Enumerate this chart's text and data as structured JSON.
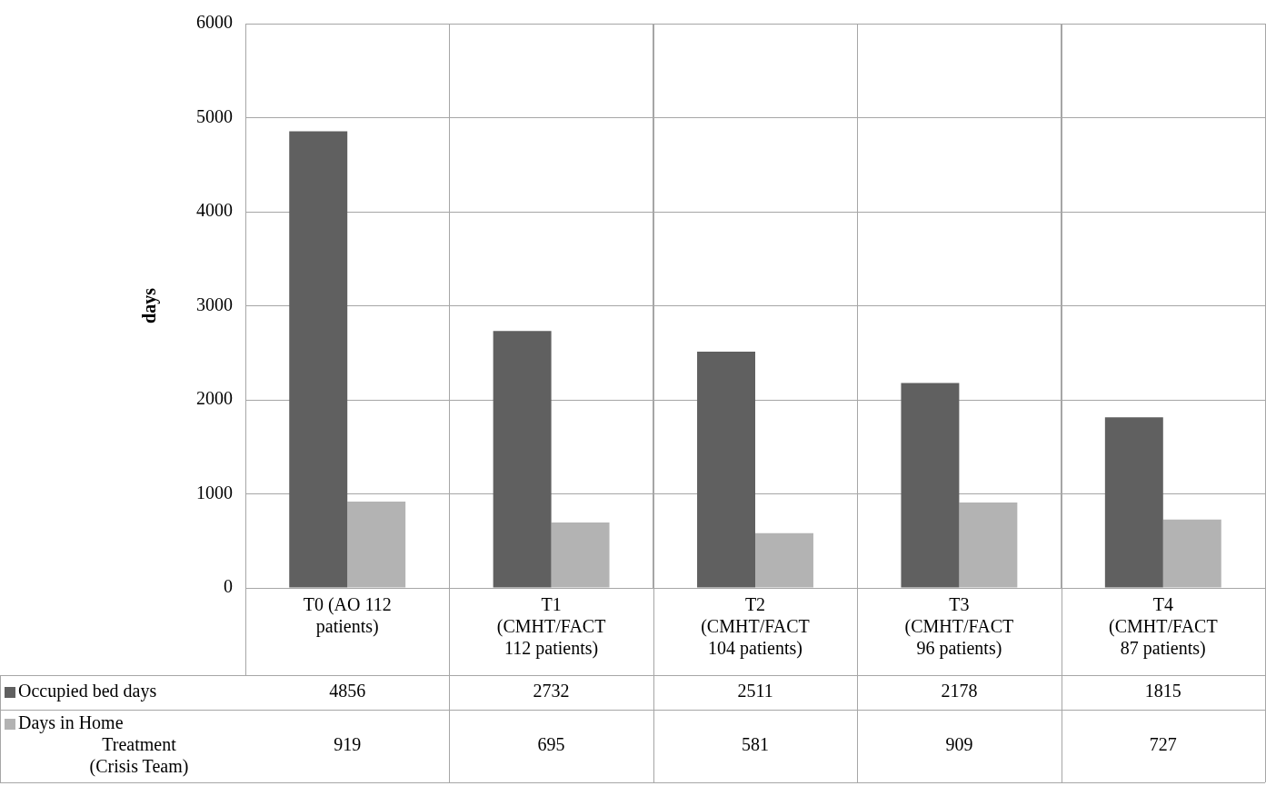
{
  "chart_data": {
    "type": "bar",
    "ylabel": "days",
    "categories": [
      "T0 (AO 112 patients)",
      "T1 (CMHT/FACT 112 patients)",
      "T2 (CMHT/FACT 104 patients)",
      "T3 (CMHT/FACT 96 patients)",
      "T4 (CMHT/FACT 87 patients)"
    ],
    "series": [
      {
        "name": "Occupied bed days",
        "color": "#606060",
        "values": [
          4856,
          2732,
          2511,
          2178,
          1815
        ]
      },
      {
        "name": "Days in Home Treatment (Crisis Team)",
        "color": "#b3b3b3",
        "values": [
          919,
          695,
          581,
          909,
          727
        ]
      }
    ],
    "ylim": [
      0,
      6000
    ],
    "yticks": [
      0,
      1000,
      2000,
      3000,
      4000,
      5000,
      6000
    ],
    "grid": true,
    "legend": "bottom left",
    "data_labels": true
  }
}
